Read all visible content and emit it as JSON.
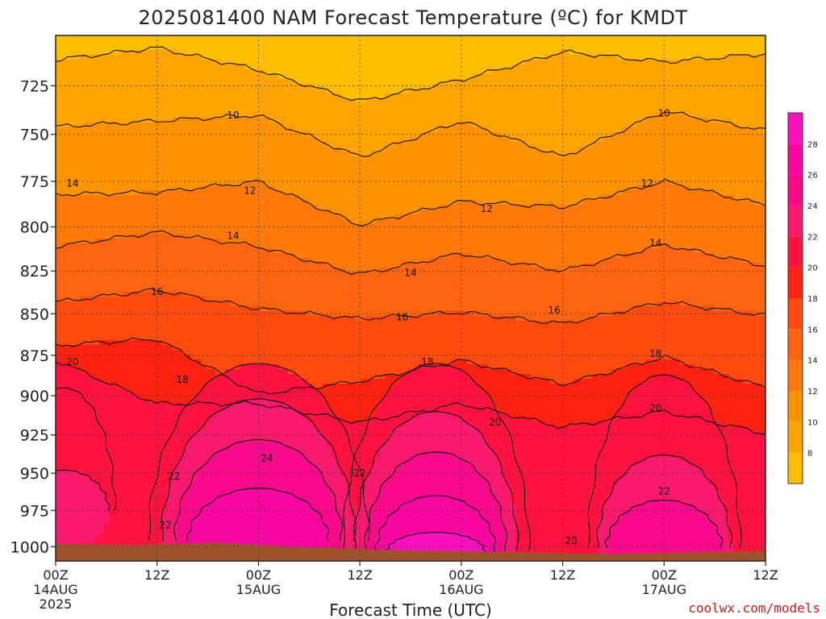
{
  "chart_data": {
    "type": "heatmap",
    "title": "2025081400 NAM Forecast Temperature (ºC) for KMDT",
    "xlabel": "Forecast Time (UTC)",
    "ylabel": "",
    "credit": "coolwx.com/models",
    "x_ticks": [
      {
        "value": 0,
        "label": "00Z",
        "sub": "14AUG",
        "sub2": "2025"
      },
      {
        "value": 12,
        "label": "12Z",
        "sub": "",
        "sub2": ""
      },
      {
        "value": 24,
        "label": "00Z",
        "sub": "15AUG",
        "sub2": ""
      },
      {
        "value": 36,
        "label": "12Z",
        "sub": "",
        "sub2": ""
      },
      {
        "value": 48,
        "label": "00Z",
        "sub": "16AUG",
        "sub2": ""
      },
      {
        "value": 60,
        "label": "12Z",
        "sub": "",
        "sub2": ""
      },
      {
        "value": 72,
        "label": "00Z",
        "sub": "17AUG",
        "sub2": ""
      },
      {
        "value": 84,
        "label": "12Z",
        "sub": "",
        "sub2": ""
      }
    ],
    "xlim": [
      0,
      84
    ],
    "y_ticks": [
      725,
      750,
      775,
      800,
      825,
      850,
      875,
      900,
      925,
      950,
      975,
      1000
    ],
    "ylim": [
      1010,
      700
    ],
    "y_scale": "log-pressure",
    "grid": true,
    "colorbar": {
      "labels": [
        8,
        10,
        12,
        14,
        16,
        18,
        20,
        22,
        24,
        26,
        28
      ],
      "bins": [
        {
          "lo": 6,
          "hi": 8,
          "color": "#ffbf00"
        },
        {
          "lo": 8,
          "hi": 10,
          "color": "#ffa400"
        },
        {
          "lo": 10,
          "hi": 12,
          "color": "#ff9200"
        },
        {
          "lo": 12,
          "hi": 14,
          "color": "#ff7a0a"
        },
        {
          "lo": 14,
          "hi": 16,
          "color": "#ff6410"
        },
        {
          "lo": 16,
          "hi": 18,
          "color": "#ff4b10"
        },
        {
          "lo": 18,
          "hi": 20,
          "color": "#ff2210"
        },
        {
          "lo": 20,
          "hi": 22,
          "color": "#ff1240"
        },
        {
          "lo": 22,
          "hi": 24,
          "color": "#fa1a70"
        },
        {
          "lo": 24,
          "hi": 26,
          "color": "#f80a8a"
        },
        {
          "lo": 26,
          "hi": 28,
          "color": "#f808a0"
        },
        {
          "lo": 28,
          "hi": 30,
          "color": "#fc10c0"
        }
      ]
    },
    "contour_values": [
      10,
      12,
      14,
      16,
      18,
      20,
      22,
      24
    ],
    "contour_levels": [
      {
        "value": 8,
        "p": [
          712,
          706,
          717,
          733,
          722,
          708,
          713,
          709
        ]
      },
      {
        "value": 10,
        "p": [
          746,
          743,
          740,
          762,
          743,
          762,
          738,
          748
        ]
      },
      {
        "value": 12,
        "p": [
          782,
          781,
          775,
          799,
          786,
          789,
          775,
          788
        ]
      },
      {
        "value": 14,
        "p": [
          811,
          803,
          811,
          827,
          815,
          825,
          810,
          822
        ]
      },
      {
        "value": 16,
        "p": [
          843,
          836,
          847,
          853,
          849,
          856,
          843,
          851
        ]
      },
      {
        "value": 18,
        "p": [
          869,
          865,
          899,
          891,
          878,
          893,
          876,
          895
        ]
      },
      {
        "value": 20,
        "p": [
          878,
          905,
          905,
          917,
          905,
          920,
          910,
          924
        ]
      }
    ],
    "warm_cores": [
      {
        "x": 24,
        "p": 996,
        "t": 27.5,
        "rx": 13,
        "levels": [
          {
            "t": 20,
            "top": 880
          },
          {
            "t": 22,
            "top": 902
          },
          {
            "t": 24,
            "top": 928
          },
          {
            "t": 26,
            "top": 960
          }
        ]
      },
      {
        "x": 45,
        "p": 1003,
        "t": 28.5,
        "rx": 11,
        "levels": [
          {
            "t": 20,
            "top": 880
          },
          {
            "t": 22,
            "top": 910
          },
          {
            "t": 24,
            "top": 936
          },
          {
            "t": 26,
            "top": 965
          },
          {
            "t": 28,
            "top": 990
          }
        ]
      },
      {
        "x": 72,
        "p": 1001,
        "t": 26,
        "rx": 9,
        "levels": [
          {
            "t": 20,
            "top": 887
          },
          {
            "t": 22,
            "top": 938
          },
          {
            "t": 24,
            "top": 968
          }
        ]
      },
      {
        "x": 1,
        "p": 975,
        "t": 24.5,
        "rx": 6,
        "levels": [
          {
            "t": 20,
            "top": 895
          },
          {
            "t": 22,
            "top": 948
          }
        ]
      }
    ],
    "contour_labels": [
      {
        "text": "10",
        "x": 21,
        "p": 740
      },
      {
        "text": "10",
        "x": 72,
        "p": 739
      },
      {
        "text": "12",
        "x": 23,
        "p": 780
      },
      {
        "text": "12",
        "x": 51,
        "p": 790
      },
      {
        "text": "12",
        "x": 70,
        "p": 776
      },
      {
        "text": "14",
        "x": 2,
        "p": 776
      },
      {
        "text": "14",
        "x": 21,
        "p": 805
      },
      {
        "text": "14",
        "x": 42,
        "p": 826
      },
      {
        "text": "14",
        "x": 71,
        "p": 809
      },
      {
        "text": "16",
        "x": 12,
        "p": 837
      },
      {
        "text": "16",
        "x": 41,
        "p": 852
      },
      {
        "text": "16",
        "x": 59,
        "p": 848
      },
      {
        "text": "18",
        "x": 15,
        "p": 890
      },
      {
        "text": "18",
        "x": 44,
        "p": 879
      },
      {
        "text": "18",
        "x": 71,
        "p": 874
      },
      {
        "text": "20",
        "x": 2,
        "p": 879
      },
      {
        "text": "20",
        "x": 52,
        "p": 917
      },
      {
        "text": "20",
        "x": 71,
        "p": 908
      },
      {
        "text": "20",
        "x": 61,
        "p": 996
      },
      {
        "text": "22",
        "x": 14,
        "p": 952
      },
      {
        "text": "22",
        "x": 13,
        "p": 985
      },
      {
        "text": "22",
        "x": 36,
        "p": 950
      },
      {
        "text": "22",
        "x": 72,
        "p": 962
      },
      {
        "text": "24",
        "x": 25,
        "p": 940
      }
    ],
    "terrain": {
      "color": "#a0522d",
      "p": [
        998,
        999,
        997,
        1000,
        1002,
        1003,
        1004,
        1005,
        1004,
        1003
      ]
    }
  }
}
